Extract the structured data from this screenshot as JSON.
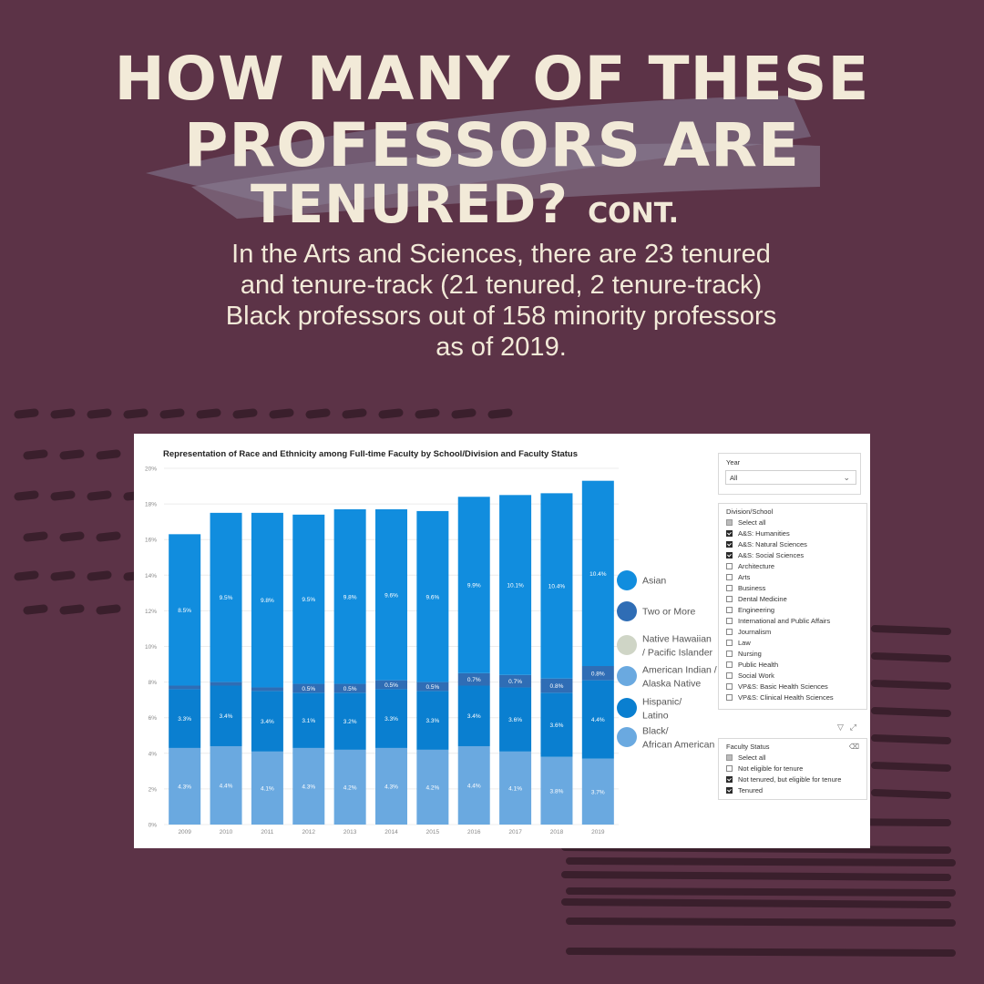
{
  "headline": {
    "line1": "HOW MANY OF THESE",
    "line2": "PROFESSORS ARE",
    "line3": "TENURED?",
    "line3_suffix": "CONT",
    "line3_dot": "."
  },
  "intro": {
    "line1": "In the Arts and Sciences, there are 23 tenured",
    "line2": "and tenure-track (21 tenured, 2 tenure-track)",
    "line3": "Black professors out of 158 minority professors",
    "line4": "as of 2019."
  },
  "colors": {
    "background": "#5c3347",
    "headline_text": "#f2ead8",
    "asian": "#118dde",
    "two_or_more": "#2f6db5",
    "native_hawaiian": "#cfd5c6",
    "american_indian": "#6aa9e0",
    "hispanic": "#0a7fd0",
    "black": "#6aa9e0"
  },
  "chart_data": {
    "type": "bar",
    "stacked": true,
    "title": "Representation of Race and Ethnicity among Full-time Faculty by School/Division and Faculty Status",
    "categories": [
      "2009",
      "2010",
      "2011",
      "2012",
      "2013",
      "2014",
      "2015",
      "2016",
      "2017",
      "2018",
      "2019"
    ],
    "y_ticks": [
      "0%",
      "2%",
      "4%",
      "6%",
      "8%",
      "10%",
      "12%",
      "14%",
      "16%",
      "18%",
      "20%"
    ],
    "ylim": [
      0,
      20
    ],
    "grid": true,
    "legend_position": "right",
    "series": [
      {
        "name": "Black/ African American",
        "key": "black",
        "values": [
          4.3,
          4.4,
          4.1,
          4.3,
          4.2,
          4.3,
          4.2,
          4.4,
          4.1,
          3.8,
          3.7
        ],
        "labels": [
          "4.3%",
          "4.4%",
          "4.1%",
          "4.3%",
          "4.2%",
          "4.3%",
          "4.2%",
          "4.4%",
          "4.1%",
          "3.8%",
          "3.7%"
        ]
      },
      {
        "name": "Hispanic/ Latino",
        "key": "hispanic",
        "values": [
          3.3,
          3.4,
          3.4,
          3.1,
          3.2,
          3.3,
          3.3,
          3.4,
          3.6,
          3.6,
          4.4
        ],
        "labels": [
          "3.3%",
          "3.4%",
          "3.4%",
          "3.1%",
          "3.2%",
          "3.3%",
          "3.3%",
          "3.4%",
          "3.6%",
          "3.6%",
          "4.4%"
        ]
      },
      {
        "name": "American Indian / Alaska Native",
        "key": "american_indian",
        "values": [
          0,
          0,
          0,
          0,
          0,
          0,
          0,
          0,
          0,
          0,
          0
        ],
        "labels": [
          "",
          "",
          "",
          "",
          "",
          "",
          "",
          "",
          "",
          "",
          ""
        ]
      },
      {
        "name": "Native Hawaiian / Pacific Islander",
        "key": "native_hawaiian",
        "values": [
          0,
          0,
          0,
          0,
          0,
          0,
          0,
          0,
          0,
          0,
          0
        ],
        "labels": [
          "",
          "",
          "",
          "",
          "",
          "",
          "",
          "",
          "",
          "",
          ""
        ]
      },
      {
        "name": "Two or More",
        "key": "two_or_more",
        "values": [
          0.2,
          0.2,
          0.2,
          0.5,
          0.5,
          0.5,
          0.5,
          0.7,
          0.7,
          0.8,
          0.8
        ],
        "labels": [
          "",
          "",
          "",
          "0.5%",
          "0.5%",
          "0.5%",
          "0.5%",
          "0.7%",
          "0.7%",
          "0.8%",
          "0.8%"
        ]
      },
      {
        "name": "Asian",
        "key": "asian",
        "values": [
          8.5,
          9.5,
          9.8,
          9.5,
          9.8,
          9.6,
          9.6,
          9.9,
          10.1,
          10.4,
          10.4
        ],
        "labels": [
          "8.5%",
          "9.5%",
          "9.8%",
          "9.5%",
          "9.8%",
          "9.6%",
          "9.6%",
          "9.9%",
          "10.1%",
          "10.4%",
          "10.4%"
        ]
      }
    ],
    "legend": [
      {
        "key": "asian",
        "lines": [
          "Asian"
        ]
      },
      {
        "key": "two_or_more",
        "lines": [
          "Two or More"
        ]
      },
      {
        "key": "native_hawaiian",
        "lines": [
          "Native Hawaiian",
          "/ Pacific Islander"
        ]
      },
      {
        "key": "american_indian",
        "lines": [
          "American Indian /",
          "Alaska Native"
        ]
      },
      {
        "key": "hispanic",
        "lines": [
          "Hispanic/",
          "Latino"
        ]
      },
      {
        "key": "black",
        "lines": [
          "Black/",
          "African American"
        ]
      }
    ]
  },
  "slicers": {
    "year": {
      "title": "Year",
      "selected": "All"
    },
    "division": {
      "title": "Division/School",
      "options": [
        {
          "label": "Select all",
          "state": "partial"
        },
        {
          "label": "A&S: Humanities",
          "state": "checked"
        },
        {
          "label": "A&S: Natural Sciences",
          "state": "checked"
        },
        {
          "label": "A&S: Social Sciences",
          "state": "checked"
        },
        {
          "label": "Architecture",
          "state": "unchecked"
        },
        {
          "label": "Arts",
          "state": "unchecked"
        },
        {
          "label": "Business",
          "state": "unchecked"
        },
        {
          "label": "Dental Medicine",
          "state": "unchecked"
        },
        {
          "label": "Engineering",
          "state": "unchecked"
        },
        {
          "label": "International and Public Affairs",
          "state": "unchecked"
        },
        {
          "label": "Journalism",
          "state": "unchecked"
        },
        {
          "label": "Law",
          "state": "unchecked"
        },
        {
          "label": "Nursing",
          "state": "unchecked"
        },
        {
          "label": "Public Health",
          "state": "unchecked"
        },
        {
          "label": "Social Work",
          "state": "unchecked"
        },
        {
          "label": "VP&S: Basic Health Sciences",
          "state": "unchecked"
        },
        {
          "label": "VP&S: Clinical Health Sciences",
          "state": "unchecked"
        }
      ]
    },
    "faculty_status": {
      "title": "Faculty Status",
      "options": [
        {
          "label": "Select all",
          "state": "partial"
        },
        {
          "label": "Not eligible for tenure",
          "state": "unchecked"
        },
        {
          "label": "Not tenured, but eligible for tenure",
          "state": "checked"
        },
        {
          "label": "Tenured",
          "state": "checked"
        }
      ]
    }
  },
  "icons": {
    "filter": "filter-icon",
    "expand": "expand-icon",
    "eraser": "eraser-icon",
    "dropdown": "chevron-down-icon"
  }
}
